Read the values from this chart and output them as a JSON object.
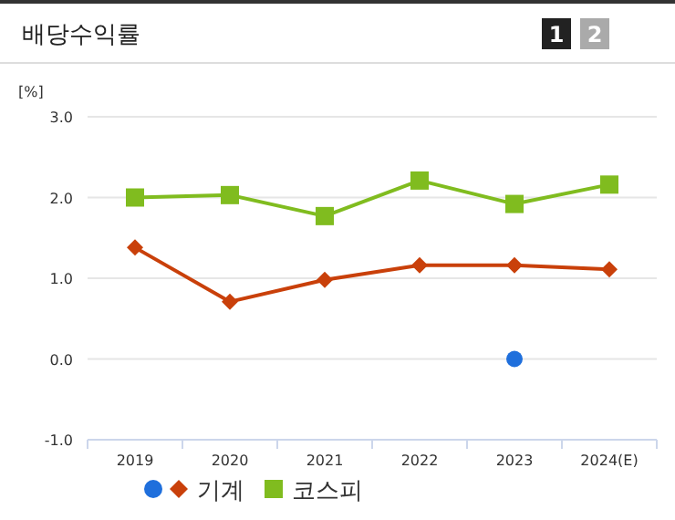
{
  "chart_data": {
    "type": "line",
    "title": "배당수익률",
    "ylabel": "[%]",
    "categories": [
      "2019",
      "2020",
      "2021",
      "2022",
      "2023",
      "2024(E)"
    ],
    "series": [
      {
        "type": "scatter",
        "marker": "circle",
        "color": "#1f6fdc",
        "values": [
          null,
          null,
          null,
          null,
          0.0,
          null
        ]
      },
      {
        "name": "기계",
        "marker": "diamond",
        "color": "#c9400a",
        "values": [
          1.38,
          0.71,
          0.98,
          1.16,
          1.16,
          1.11
        ]
      },
      {
        "name": "코스피",
        "marker": "square",
        "color": "#80bc1f",
        "values": [
          2.0,
          2.03,
          1.77,
          2.21,
          1.92,
          2.16
        ]
      }
    ],
    "ylim": [
      -1,
      3
    ],
    "yticks": [
      {
        "value": -1,
        "label": "-1.0"
      },
      {
        "value": 0,
        "label": "0.0"
      },
      {
        "value": 1,
        "label": "1.0"
      },
      {
        "value": 2,
        "label": "2.0"
      },
      {
        "value": 3,
        "label": "3.0"
      }
    ],
    "grid": "y",
    "legend": "bottom",
    "annotations": [
      "1",
      "2"
    ]
  }
}
